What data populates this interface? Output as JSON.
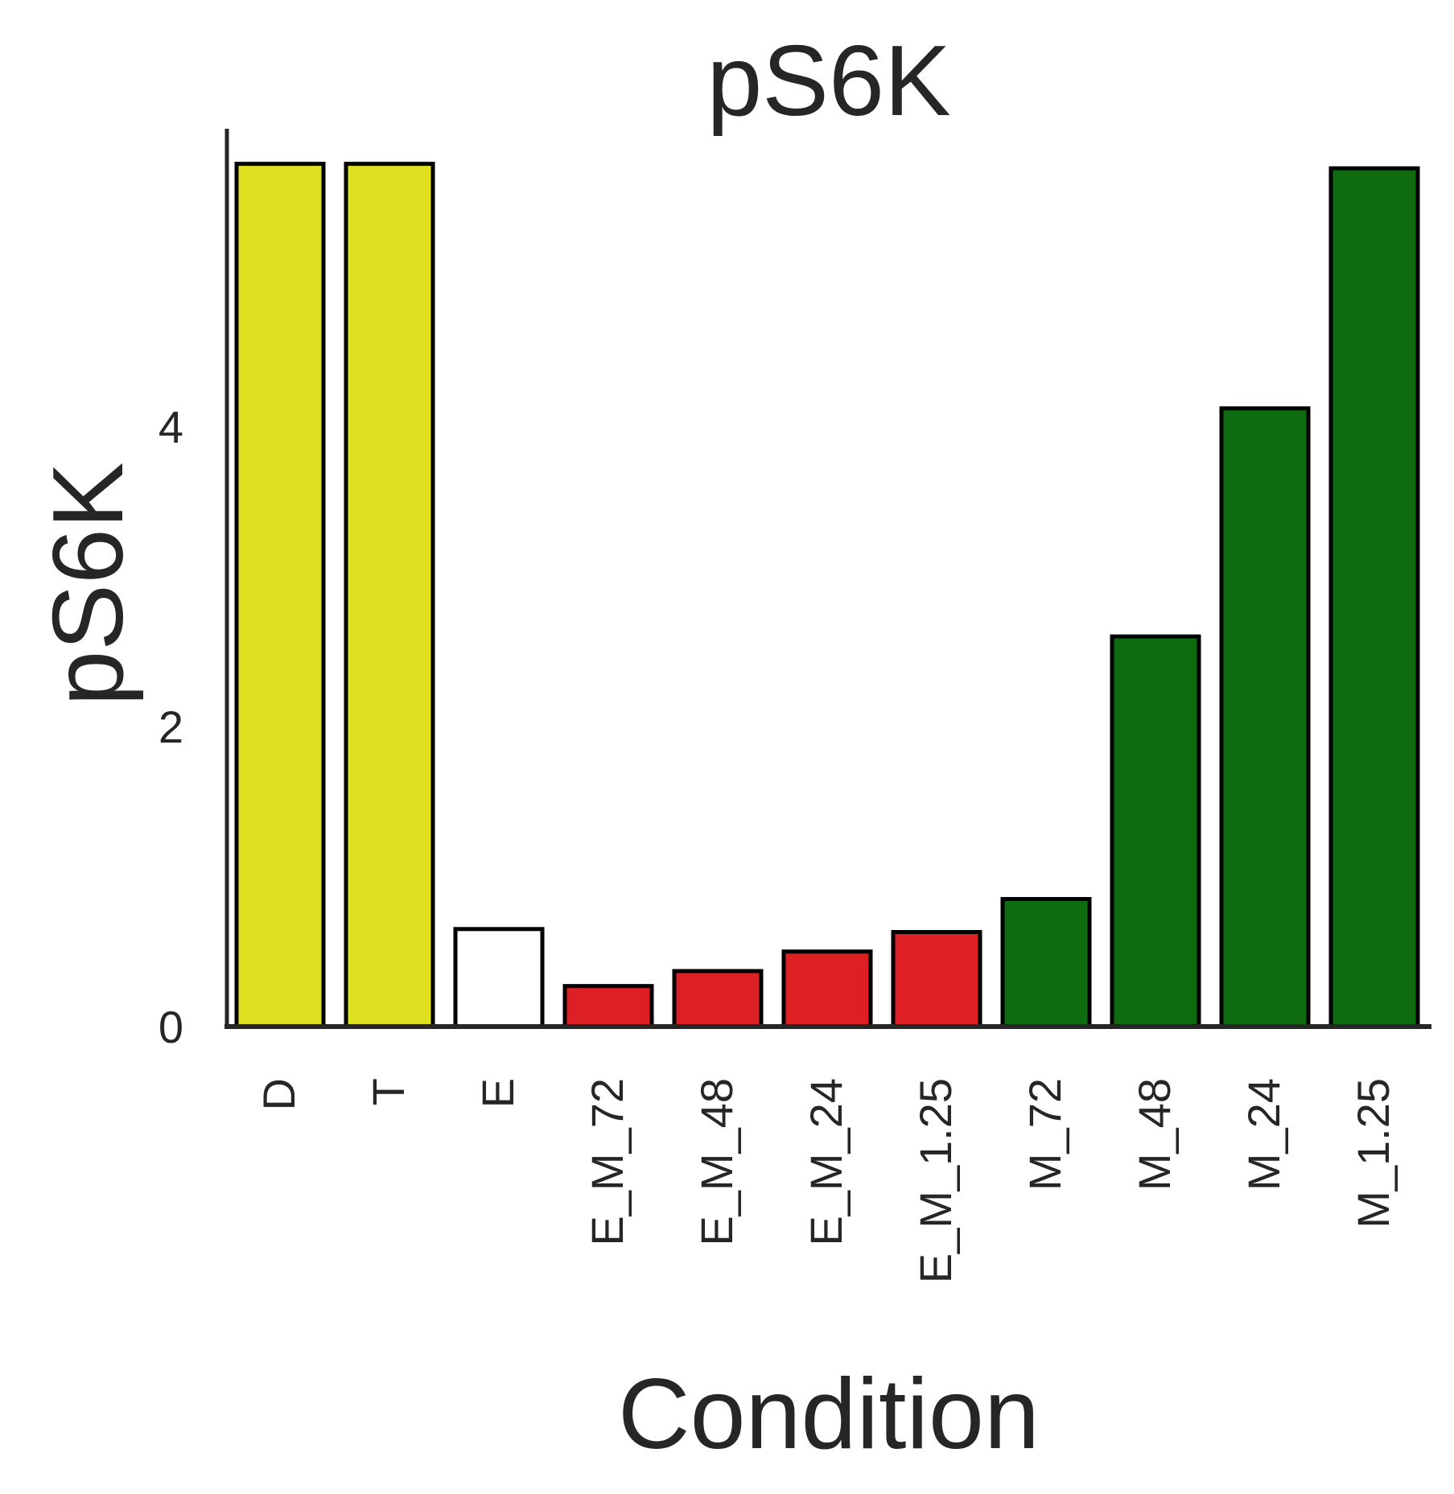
{
  "chart_data": {
    "type": "bar",
    "title": "pS6K",
    "xlabel": "Condition",
    "ylabel": "pS6K",
    "categories": [
      "D",
      "T",
      "E",
      "E_M_72",
      "E_M_48",
      "E_M_24",
      "E_M_1.25",
      "M_72",
      "M_48",
      "M_24",
      "M_1.25"
    ],
    "values": [
      5.75,
      5.75,
      0.65,
      0.27,
      0.37,
      0.5,
      0.63,
      0.85,
      2.6,
      4.12,
      5.72
    ],
    "bar_colors": [
      "#dedf1e",
      "#dedf1e",
      "#ffffff",
      "#dc2023",
      "#dc2023",
      "#dc2023",
      "#dc2023",
      "#0e6b10",
      "#0e6b10",
      "#0e6b10",
      "#0e6b10"
    ],
    "ylim": [
      0,
      6.05
    ],
    "yticks": [
      0,
      2,
      4
    ],
    "grid": false,
    "legend": "none"
  }
}
